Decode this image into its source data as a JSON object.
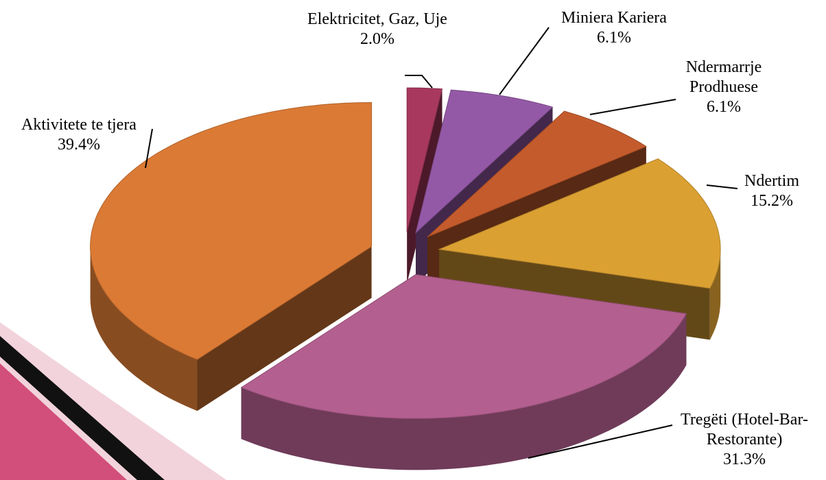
{
  "chart_data": {
    "type": "pie3d",
    "categories": [
      "Elektricitet, Gaz, Uje",
      "Miniera Kariera",
      "Ndermarrje Prodhuese",
      "Ndertim",
      "Tregëti (Hotel-Bar-Restorante)",
      "Aktivitete te tjera"
    ],
    "values": [
      2.0,
      6.1,
      6.1,
      15.2,
      31.3,
      39.4
    ],
    "value_labels": [
      "2.0%",
      "6.1%",
      "6.1%",
      "15.2%",
      "31.3%",
      "39.4%"
    ],
    "colors": [
      "#a8385e",
      "#9459a6",
      "#c45b2c",
      "#dba032",
      "#b35f8f",
      "#db7a35"
    ]
  }
}
